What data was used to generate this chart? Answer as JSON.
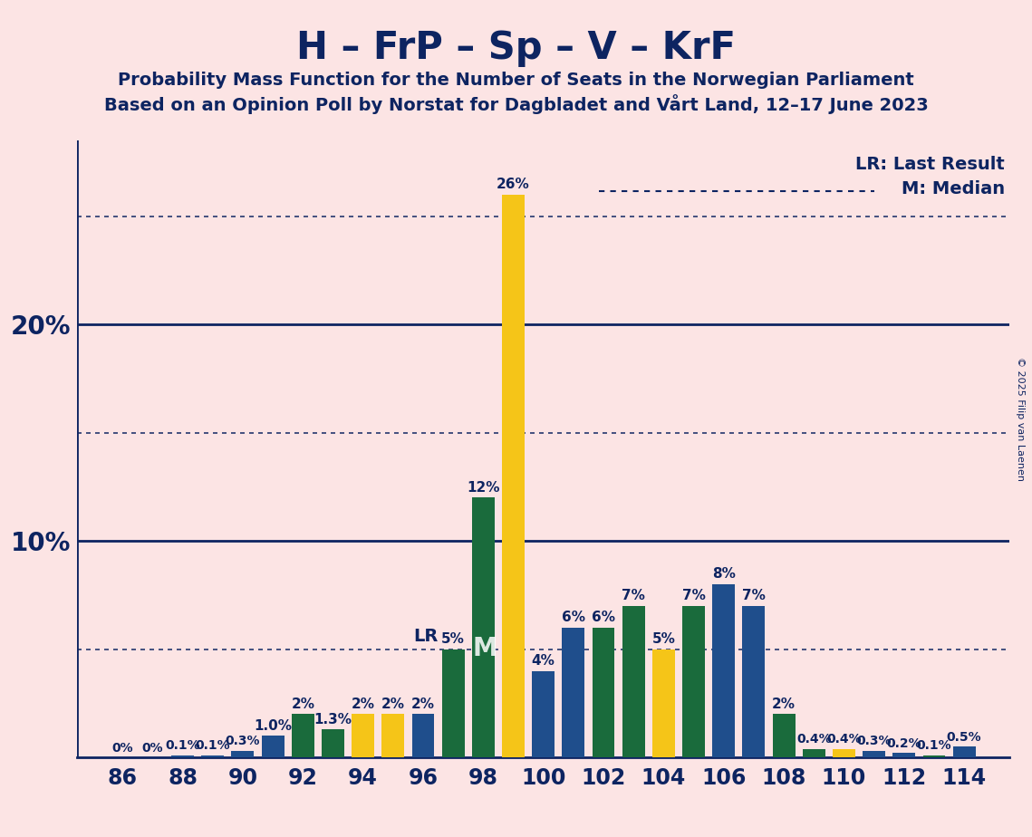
{
  "title": "H – FrP – Sp – V – KrF",
  "subtitle1": "Probability Mass Function for the Number of Seats in the Norwegian Parliament",
  "subtitle2": "Based on an Opinion Poll by Norstat for Dagbladet and Vårt Land, 12–17 June 2023",
  "copyright": "© 2025 Filip van Laenen",
  "background_color": "#fce4e4",
  "text_color": "#0d2461",
  "seats": [
    86,
    87,
    88,
    89,
    90,
    91,
    92,
    93,
    94,
    95,
    96,
    97,
    98,
    99,
    100,
    101,
    102,
    103,
    104,
    105,
    106,
    107,
    108,
    109,
    110,
    111,
    112,
    113,
    114
  ],
  "values": [
    0.0,
    0.0,
    0.1,
    0.1,
    0.3,
    1.0,
    2.0,
    1.3,
    2.0,
    2.0,
    2.0,
    5.0,
    12.0,
    26.0,
    4.0,
    6.0,
    6.0,
    7.0,
    5.0,
    7.0,
    8.0,
    7.0,
    2.0,
    0.4,
    0.4,
    0.3,
    0.2,
    0.1,
    0.5
  ],
  "colors": [
    "#1f4e8c",
    "#1f4e8c",
    "#1f4e8c",
    "#1f4e8c",
    "#1f4e8c",
    "#1f4e8c",
    "#1a6b3c",
    "#1a6b3c",
    "#f5c518",
    "#f5c518",
    "#1f4e8c",
    "#1a6b3c",
    "#1a6b3c",
    "#f5c518",
    "#1f4e8c",
    "#1f4e8c",
    "#1a6b3c",
    "#1a6b3c",
    "#f5c518",
    "#1a6b3c",
    "#1f4e8c",
    "#1f4e8c",
    "#1a6b3c",
    "#1a6b3c",
    "#f5c518",
    "#1f4e8c",
    "#1f4e8c",
    "#1a6b3c",
    "#1f4e8c"
  ],
  "labels": [
    "0%",
    "0%",
    "0.1%",
    "0.1%",
    "0.3%",
    "1.0%",
    "2%",
    "1.3%",
    "2%",
    "2%",
    "2%",
    "5%",
    "12%",
    "26%",
    "4%",
    "6%",
    "6%",
    "7%",
    "5%",
    "7%",
    "8%",
    "7%",
    "2%",
    "0.4%",
    "0.4%",
    "0.3%",
    "0.2%",
    "0.1%",
    "0.5%"
  ],
  "lr_seat": 97,
  "median_seat": 98,
  "ylim_max": 28.5,
  "bar_width": 0.75
}
